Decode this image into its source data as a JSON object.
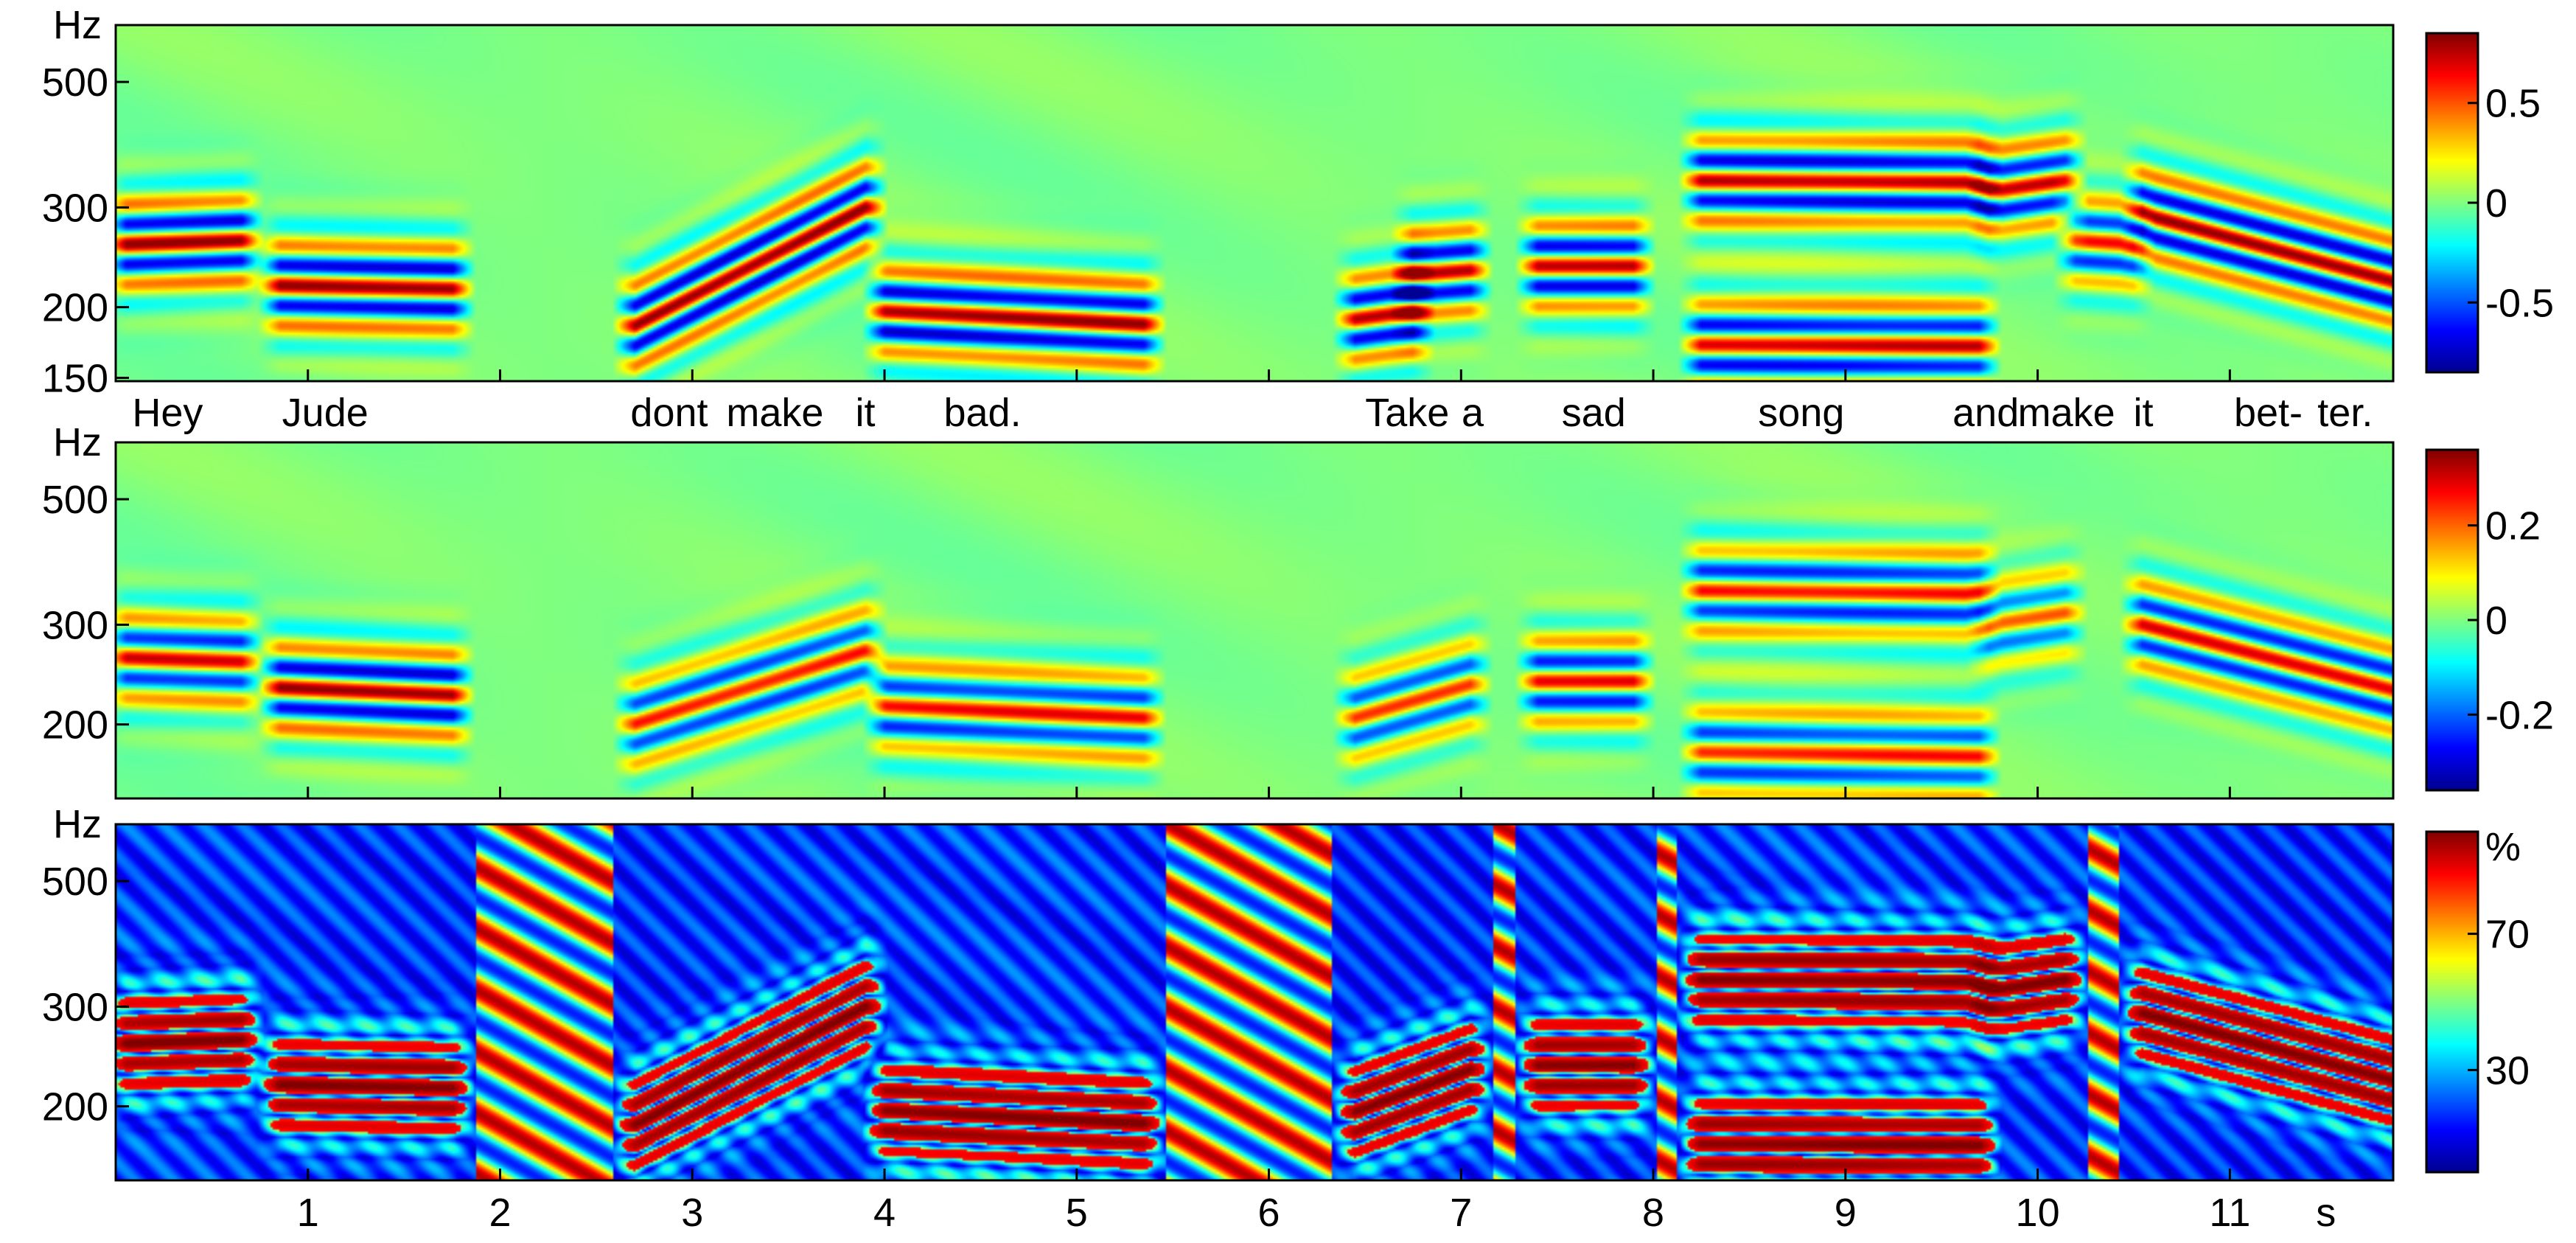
{
  "chart_data": [
    {
      "type": "heatmap",
      "ylabel": "Hz",
      "yscale": "log",
      "ylim": [
        148,
        630
      ],
      "xlim": [
        0,
        11.85
      ],
      "y_ticks": [
        "150",
        "200",
        "300",
        "500"
      ],
      "colorbar": {
        "range": [
          -0.85,
          0.85
        ],
        "ticks": [
          "0.5",
          "0",
          "-0.5"
        ]
      },
      "ridges": [
        {
          "t0": 0.05,
          "t1": 0.65,
          "f0": 258,
          "f1": 262,
          "amp": 1.0
        },
        {
          "t0": 0.85,
          "t1": 1.75,
          "f0": 218,
          "f1": 215,
          "amp": 1.0
        },
        {
          "t0": 2.7,
          "t1": 3.9,
          "f0": 185,
          "f1": 300,
          "amp": 1.0
        },
        {
          "t0": 4.0,
          "t1": 5.35,
          "f0": 196,
          "f1": 186,
          "amp": 1.0
        },
        {
          "t0": 6.45,
          "t1": 6.75,
          "f0": 190,
          "f1": 196,
          "amp": 0.95
        },
        {
          "t0": 6.75,
          "t1": 7.05,
          "f0": 228,
          "f1": 232,
          "amp": 0.95
        },
        {
          "t0": 7.4,
          "t1": 7.9,
          "f0": 236,
          "f1": 236,
          "amp": 0.95
        },
        {
          "t0": 8.25,
          "t1": 9.7,
          "f0": 335,
          "f1": 332,
          "amp": 0.95
        },
        {
          "t0": 8.25,
          "t1": 9.7,
          "f0": 171,
          "f1": 170,
          "amp": 0.9
        },
        {
          "t0": 9.75,
          "t1": 10.15,
          "f0": 320,
          "f1": 335,
          "amp": 0.9
        },
        {
          "t0": 10.2,
          "t1": 10.5,
          "f0": 262,
          "f1": 258,
          "amp": 0.8
        },
        {
          "t0": 10.55,
          "t1": 11.85,
          "f0": 292,
          "f1": 222,
          "amp": 1.0
        }
      ]
    },
    {
      "type": "heatmap",
      "ylabel": "Hz",
      "yscale": "log",
      "ylim": [
        148,
        630
      ],
      "xlim": [
        0,
        11.85
      ],
      "y_ticks": [
        "200",
        "300",
        "500"
      ],
      "colorbar": {
        "range": [
          -0.36,
          0.36
        ],
        "ticks": [
          "0.2",
          "0",
          "-0.2"
        ]
      },
      "ridges": [
        {
          "t0": 0.05,
          "t1": 0.65,
          "f0": 262,
          "f1": 258,
          "amp": 0.85
        },
        {
          "t0": 0.85,
          "t1": 1.75,
          "f0": 232,
          "f1": 225,
          "amp": 1.0
        },
        {
          "t0": 2.7,
          "t1": 3.9,
          "f0": 200,
          "f1": 270,
          "amp": 0.75
        },
        {
          "t0": 4.0,
          "t1": 5.35,
          "f0": 215,
          "f1": 205,
          "amp": 0.8
        },
        {
          "t0": 6.45,
          "t1": 7.05,
          "f0": 205,
          "f1": 235,
          "amp": 0.7
        },
        {
          "t0": 7.4,
          "t1": 7.9,
          "f0": 238,
          "f1": 238,
          "amp": 0.85
        },
        {
          "t0": 8.25,
          "t1": 9.7,
          "f0": 345,
          "f1": 340,
          "amp": 0.8
        },
        {
          "t0": 8.25,
          "t1": 9.7,
          "f0": 178,
          "f1": 175,
          "amp": 0.75
        },
        {
          "t0": 9.75,
          "t1": 10.15,
          "f0": 300,
          "f1": 315,
          "amp": 0.6
        },
        {
          "t0": 10.55,
          "t1": 11.85,
          "f0": 300,
          "f1": 230,
          "amp": 0.85
        }
      ]
    },
    {
      "type": "heatmap",
      "ylabel": "Hz",
      "yscale": "log",
      "ylim": [
        148,
        630
      ],
      "xlim": [
        0,
        11.85
      ],
      "y_ticks": [
        "200",
        "300",
        "500"
      ],
      "x_ticks": [
        "1",
        "2",
        "3",
        "4",
        "5",
        "6",
        "7",
        "8",
        "9",
        "10",
        "11"
      ],
      "x_unit": "s",
      "colorbar": {
        "range": [
          0,
          100
        ],
        "ticks": [
          "%",
          "70",
          "30"
        ]
      },
      "ridges": [
        {
          "t0": 0.05,
          "t1": 0.65,
          "f0": 258,
          "f1": 262,
          "amp": 1.0
        },
        {
          "t0": 0.85,
          "t1": 1.75,
          "f0": 218,
          "f1": 215,
          "amp": 1.0
        },
        {
          "t0": 2.7,
          "t1": 3.9,
          "f0": 185,
          "f1": 300,
          "amp": 1.0
        },
        {
          "t0": 4.0,
          "t1": 5.35,
          "f0": 196,
          "f1": 186,
          "amp": 1.0
        },
        {
          "t0": 6.45,
          "t1": 7.05,
          "f0": 195,
          "f1": 232,
          "amp": 1.0
        },
        {
          "t0": 7.4,
          "t1": 7.9,
          "f0": 236,
          "f1": 236,
          "amp": 1.0
        },
        {
          "t0": 8.25,
          "t1": 9.7,
          "f0": 335,
          "f1": 332,
          "amp": 1.0
        },
        {
          "t0": 8.25,
          "t1": 9.7,
          "f0": 171,
          "f1": 170,
          "amp": 1.0
        },
        {
          "t0": 9.75,
          "t1": 10.15,
          "f0": 320,
          "f1": 335,
          "amp": 1.0
        },
        {
          "t0": 10.55,
          "t1": 11.85,
          "f0": 292,
          "f1": 222,
          "amp": 1.0
        }
      ]
    }
  ],
  "lyrics": [
    {
      "text": "Hey",
      "t": 0.27
    },
    {
      "text": "Jude",
      "t": 1.09
    },
    {
      "text": "dont",
      "t": 2.88
    },
    {
      "text": "make",
      "t": 3.43
    },
    {
      "text": "it",
      "t": 3.9
    },
    {
      "text": "bad.",
      "t": 4.51
    },
    {
      "text": "Take",
      "t": 6.72
    },
    {
      "text": "a",
      "t": 7.06
    },
    {
      "text": "sad",
      "t": 7.69
    },
    {
      "text": "song",
      "t": 8.77
    },
    {
      "text": "and",
      "t": 9.73
    },
    {
      "text": "make",
      "t": 10.15
    },
    {
      "text": "it",
      "t": 10.55
    },
    {
      "text": "bet-",
      "t": 11.2
    },
    {
      "text": "ter.",
      "t": 11.6
    }
  ]
}
